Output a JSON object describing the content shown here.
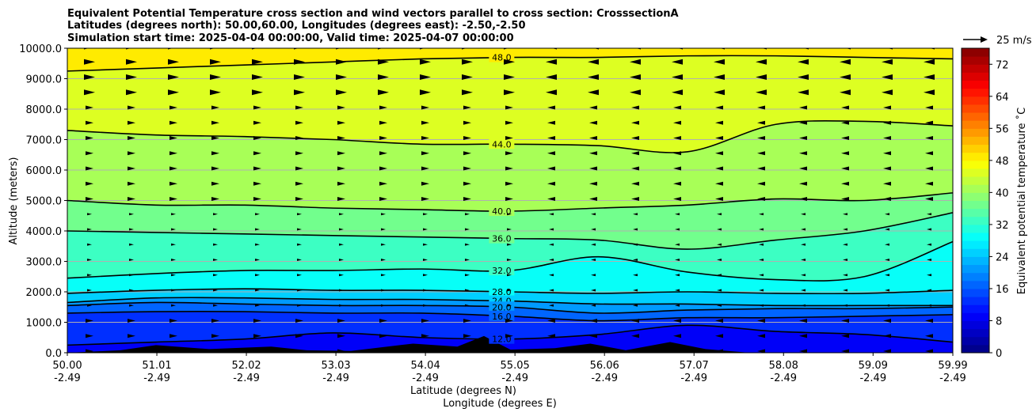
{
  "chart_data": {
    "type": "contour",
    "title_lines": [
      "Equivalent Potential Temperature cross section and wind vectors parallel to cross section: CrosssectionA",
      "Latitudes (degrees north): 50.00,60.00, Longitudes (degrees east): -2.50,-2.50",
      "Simulation start time: 2025-04-04 00:00:00, Valid time: 2025-04-07 00:00:00"
    ],
    "ylabel": "Altitude (meters)",
    "xlabel_lat": "Latitude (degrees N)",
    "xlabel_lon": "Longitude (degrees E)",
    "ylim": [
      0,
      10000
    ],
    "xlim": [
      50.0,
      59.99
    ],
    "y_ticks": [
      "0.0",
      "1000.0",
      "2000.0",
      "3000.0",
      "4000.0",
      "5000.0",
      "6000.0",
      "7000.0",
      "8000.0",
      "9000.0",
      "10000.0"
    ],
    "x_ticks": [
      {
        "lat": "50.00",
        "lon": "-2.49"
      },
      {
        "lat": "51.01",
        "lon": "-2.49"
      },
      {
        "lat": "52.02",
        "lon": "-2.49"
      },
      {
        "lat": "53.03",
        "lon": "-2.49"
      },
      {
        "lat": "54.04",
        "lon": "-2.49"
      },
      {
        "lat": "55.05",
        "lon": "-2.49"
      },
      {
        "lat": "56.06",
        "lon": "-2.49"
      },
      {
        "lat": "57.07",
        "lon": "-2.49"
      },
      {
        "lat": "58.08",
        "lon": "-2.49"
      },
      {
        "lat": "59.09",
        "lon": "-2.49"
      },
      {
        "lat": "59.99",
        "lon": "-2.49"
      }
    ],
    "colorbar": {
      "label": "Equivalent potential temperature ˚C",
      "ticks": [
        "0",
        "8",
        "16",
        "24",
        "32",
        "40",
        "48",
        "56",
        "64",
        "72"
      ],
      "range": [
        0,
        76
      ]
    },
    "quiver_key": "25 m/s",
    "contours": [
      {
        "label": "48.0",
        "heights": [
          9250,
          9350,
          9450,
          9550,
          9650,
          9700,
          9700,
          9750,
          9750,
          9700,
          9650
        ]
      },
      {
        "label": "44.0",
        "heights": [
          7300,
          7150,
          7100,
          7000,
          6850,
          6850,
          6800,
          6600,
          7500,
          7600,
          7450
        ]
      },
      {
        "label": "40.0",
        "heights": [
          5000,
          4850,
          4850,
          4750,
          4700,
          4650,
          4750,
          4850,
          5050,
          5000,
          5250
        ]
      },
      {
        "label": "36.0",
        "heights": [
          4000,
          3950,
          3900,
          3850,
          3800,
          3750,
          3700,
          3400,
          3700,
          4000,
          4600
        ]
      },
      {
        "label": "32.0",
        "heights": [
          2450,
          2600,
          2700,
          2700,
          2750,
          2700,
          3150,
          2650,
          2400,
          2500,
          3650
        ]
      },
      {
        "label": "28.0",
        "heights": [
          1950,
          2050,
          2100,
          2050,
          2050,
          2000,
          1950,
          2000,
          1950,
          1950,
          2050
        ]
      },
      {
        "label": "24.0",
        "heights": [
          1650,
          1800,
          1800,
          1750,
          1750,
          1700,
          1600,
          1600,
          1550,
          1550,
          1550
        ]
      },
      {
        "label": "20.0",
        "heights": [
          1550,
          1650,
          1600,
          1550,
          1550,
          1500,
          1300,
          1400,
          1450,
          1450,
          1500
        ]
      },
      {
        "label": "16.0",
        "heights": [
          1300,
          1350,
          1350,
          1300,
          1300,
          1200,
          1050,
          1150,
          1150,
          1200,
          1250
        ]
      },
      {
        "label": "12.0",
        "heights": [
          250,
          350,
          450,
          650,
          500,
          450,
          600,
          900,
          700,
          600,
          350
        ]
      }
    ],
    "terrain": [
      {
        "lat": 50.0,
        "h": 0
      },
      {
        "lat": 50.6,
        "h": 80
      },
      {
        "lat": 51.0,
        "h": 250
      },
      {
        "lat": 51.6,
        "h": 120
      },
      {
        "lat": 52.3,
        "h": 200
      },
      {
        "lat": 52.7,
        "h": 80
      },
      {
        "lat": 53.2,
        "h": 60
      },
      {
        "lat": 53.9,
        "h": 300
      },
      {
        "lat": 54.4,
        "h": 200
      },
      {
        "lat": 54.7,
        "h": 550
      },
      {
        "lat": 55.0,
        "h": 100
      },
      {
        "lat": 55.5,
        "h": 150
      },
      {
        "lat": 55.9,
        "h": 300
      },
      {
        "lat": 56.3,
        "h": 80
      },
      {
        "lat": 56.8,
        "h": 350
      },
      {
        "lat": 57.2,
        "h": 120
      },
      {
        "lat": 57.7,
        "h": 0
      }
    ]
  }
}
